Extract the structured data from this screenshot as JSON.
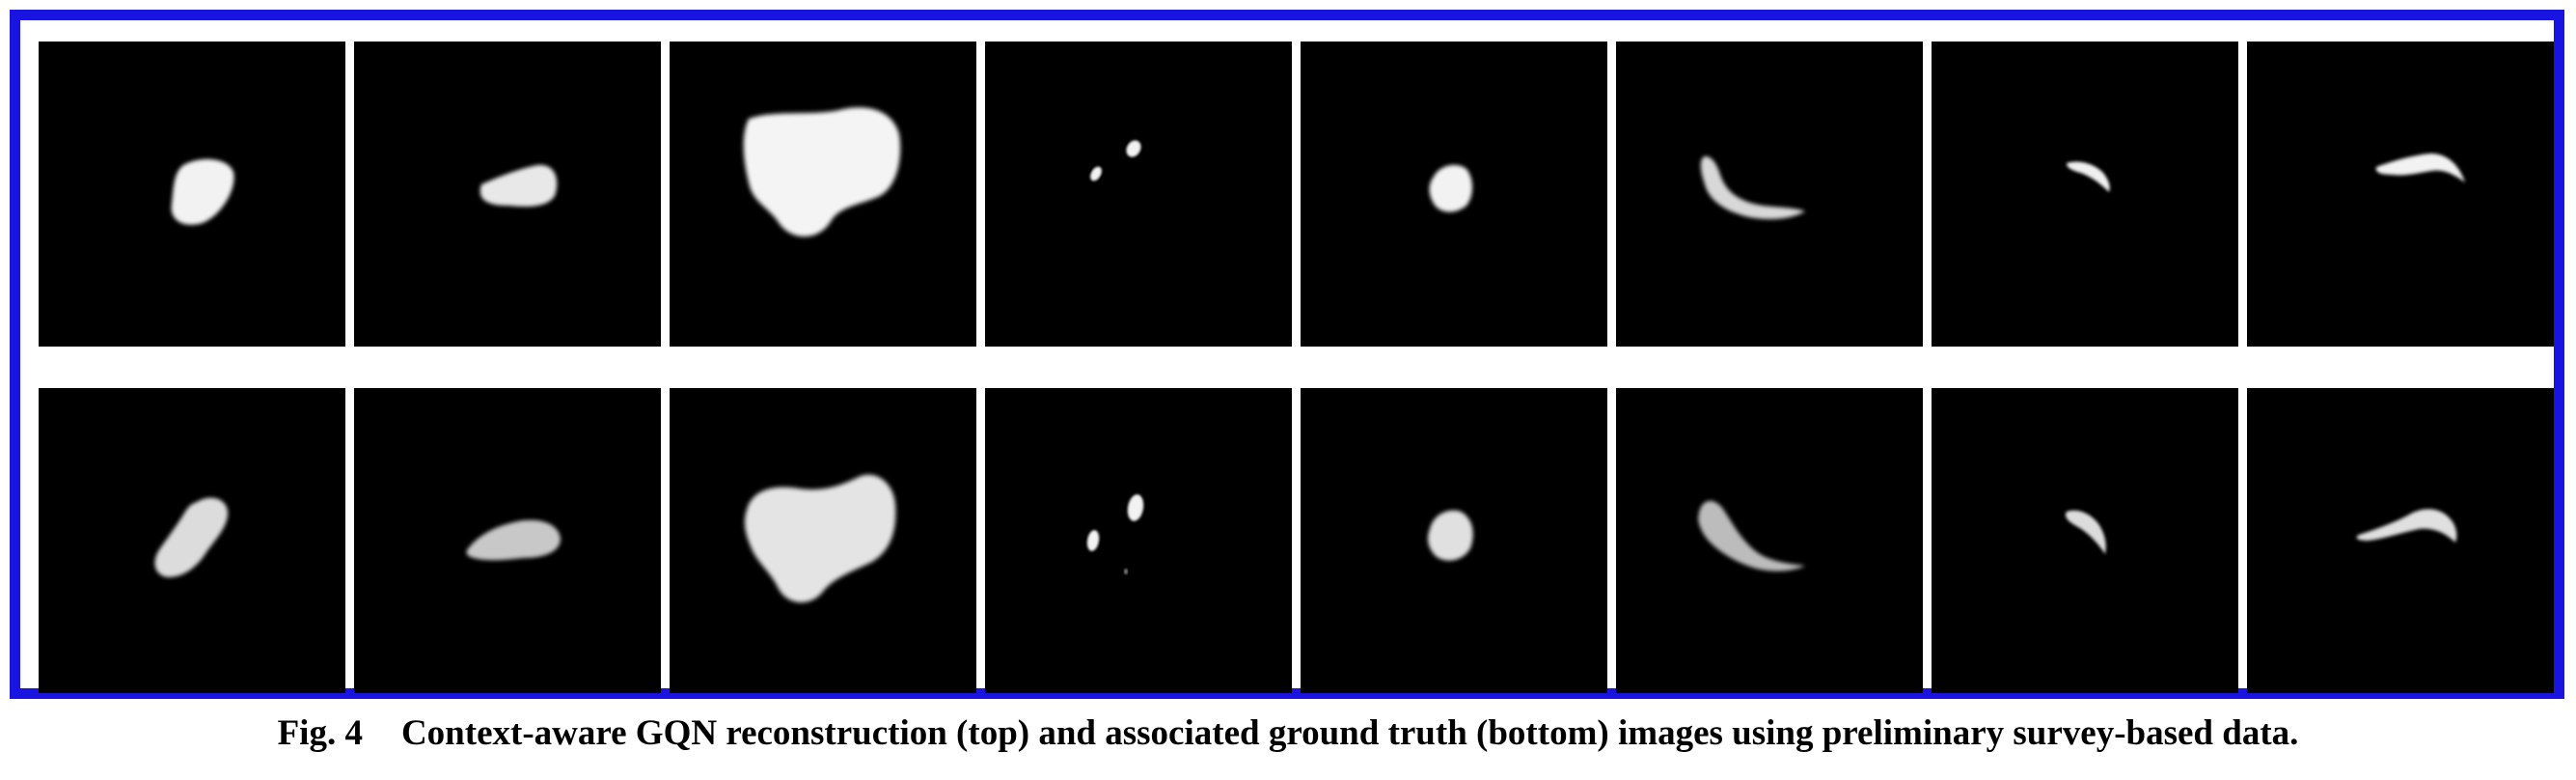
{
  "caption": {
    "label": "Fig. 4",
    "text": "Context-aware GQN reconstruction (top) and associated ground truth (bottom) images using preliminary survey-based data."
  },
  "rows": [
    {
      "name": "reconstruction",
      "tiles": 8
    },
    {
      "name": "ground-truth",
      "tiles": 8
    }
  ]
}
